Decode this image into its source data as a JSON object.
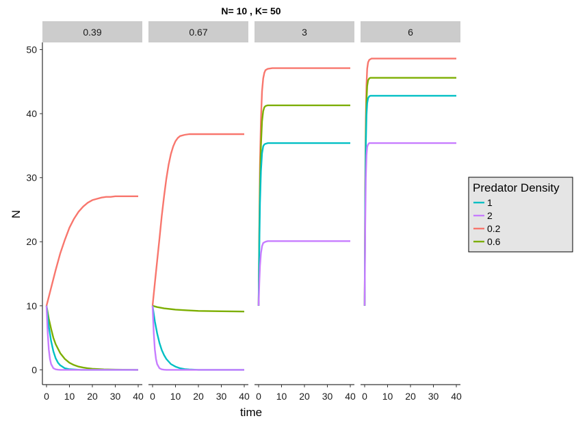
{
  "chart_data": {
    "type": "line",
    "title": "N= 10 , K= 50",
    "xlabel": "time",
    "ylabel": "N",
    "xlim": [
      0,
      40
    ],
    "ylim": [
      0,
      50
    ],
    "x_ticks": [
      0,
      10,
      20,
      30,
      40
    ],
    "y_ticks": [
      0,
      10,
      20,
      30,
      40,
      50
    ],
    "grid": false,
    "legend": {
      "title": "Predator Density",
      "placement": "right"
    },
    "colors": {
      "0.2": "#F8766D",
      "0.6": "#7CAE00",
      "1": "#00BFC4",
      "2": "#C77CFF"
    },
    "panels": [
      {
        "label": "0.39",
        "series": [
          {
            "name": "0.2",
            "x": [
              0,
              2,
              4,
              6,
              8,
              10,
              12,
              14,
              16,
              18,
              20,
              22,
              24,
              26,
              28,
              30,
              35,
              40
            ],
            "values": [
              10,
              12.8,
              15.6,
              18.2,
              20.3,
              22.2,
              23.6,
              24.7,
              25.5,
              26.1,
              26.5,
              26.7,
              26.9,
              27.0,
              27.0,
              27.1,
              27.1,
              27.1
            ]
          },
          {
            "name": "0.6",
            "x": [
              0,
              1,
              2,
              3,
              4,
              6,
              8,
              10,
              12,
              14,
              16,
              18,
              20,
              25,
              30,
              40
            ],
            "values": [
              10,
              8.0,
              6.4,
              5.0,
              4.0,
              2.6,
              1.7,
              1.1,
              0.75,
              0.5,
              0.35,
              0.25,
              0.17,
              0.08,
              0.03,
              0
            ]
          },
          {
            "name": "1",
            "x": [
              0,
              1,
              2,
              3,
              4,
              5,
              6,
              8,
              10,
              15,
              20,
              40
            ],
            "values": [
              10,
              6.8,
              4.5,
              2.9,
              1.8,
              1.1,
              0.7,
              0.25,
              0.1,
              0,
              0,
              0
            ]
          },
          {
            "name": "2",
            "x": [
              0,
              0.5,
              1,
              1.5,
              2,
              3,
              4,
              5,
              6,
              10,
              40
            ],
            "values": [
              10,
              5.8,
              3.2,
              1.7,
              0.9,
              0.25,
              0.07,
              0.02,
              0,
              0,
              0
            ]
          }
        ]
      },
      {
        "label": "0.67",
        "series": [
          {
            "name": "0.2",
            "x": [
              0,
              1,
              2,
              3,
              4,
              5,
              6,
              7,
              8,
              9,
              10,
              11,
              12,
              14,
              16,
              18,
              20,
              25,
              30,
              40
            ],
            "values": [
              10,
              13.5,
              17,
              20.5,
              24,
              27.1,
              29.8,
              32.0,
              33.7,
              34.9,
              35.7,
              36.2,
              36.5,
              36.7,
              36.8,
              36.8,
              36.8,
              36.8,
              36.8,
              36.8
            ]
          },
          {
            "name": "0.6",
            "x": [
              0,
              2,
              5,
              10,
              15,
              20,
              30,
              40
            ],
            "values": [
              10,
              9.8,
              9.6,
              9.4,
              9.3,
              9.2,
              9.15,
              9.1
            ]
          },
          {
            "name": "1",
            "x": [
              0,
              1,
              2,
              3,
              4,
              5,
              6,
              8,
              10,
              12,
              14,
              16,
              20,
              40
            ],
            "values": [
              10,
              7.6,
              5.7,
              4.2,
              3.1,
              2.3,
              1.7,
              0.9,
              0.5,
              0.25,
              0.12,
              0.06,
              0,
              0
            ]
          },
          {
            "name": "2",
            "x": [
              0,
              0.5,
              1,
              1.5,
              2,
              3,
              4,
              5,
              6,
              10,
              40
            ],
            "values": [
              10,
              5.8,
              3.2,
              1.7,
              0.9,
              0.25,
              0.07,
              0.02,
              0,
              0,
              0
            ]
          }
        ]
      },
      {
        "label": "3",
        "series": [
          {
            "name": "0.2",
            "x": [
              0,
              0.3,
              0.6,
              1,
              1.5,
              2,
              2.5,
              3,
              4,
              6,
              10,
              20,
              30,
              40
            ],
            "values": [
              10,
              22,
              32,
              39,
              43.5,
              45.5,
              46.4,
              46.8,
              47.0,
              47.1,
              47.1,
              47.1,
              47.1,
              47.1
            ]
          },
          {
            "name": "0.6",
            "x": [
              0,
              0.3,
              0.6,
              1,
              1.5,
              2,
              2.5,
              3,
              4,
              6,
              10,
              20,
              30,
              40
            ],
            "values": [
              10,
              21,
              29,
              35,
              38.8,
              40.4,
              41.0,
              41.2,
              41.3,
              41.3,
              41.3,
              41.3,
              41.3,
              41.3
            ]
          },
          {
            "name": "1",
            "x": [
              0,
              0.3,
              0.6,
              1,
              1.5,
              2,
              2.5,
              3,
              4,
              6,
              10,
              20,
              30,
              40
            ],
            "values": [
              10,
              19,
              26,
              31,
              33.8,
              34.9,
              35.2,
              35.3,
              35.4,
              35.4,
              35.4,
              35.4,
              35.4,
              35.4
            ]
          },
          {
            "name": "2",
            "x": [
              0,
              0.3,
              0.6,
              1,
              1.5,
              2,
              3,
              4,
              6,
              10,
              20,
              30,
              40
            ],
            "values": [
              10,
              13.5,
              16.2,
              18.2,
              19.3,
              19.8,
              20.0,
              20.1,
              20.1,
              20.1,
              20.1,
              20.1,
              20.1
            ]
          }
        ]
      },
      {
        "label": "6",
        "series": [
          {
            "name": "0.2",
            "x": [
              0,
              0.25,
              0.5,
              0.8,
              1.1,
              1.5,
              2,
              2.5,
              3,
              5,
              10,
              20,
              40
            ],
            "values": [
              10,
              28,
              39,
              44.5,
              47,
              48,
              48.4,
              48.5,
              48.6,
              48.6,
              48.6,
              48.6,
              48.6
            ]
          },
          {
            "name": "0.6",
            "x": [
              0,
              0.25,
              0.5,
              0.8,
              1.1,
              1.5,
              2,
              2.5,
              3,
              5,
              10,
              20,
              40
            ],
            "values": [
              10,
              27,
              37,
              42,
              44.3,
              45.2,
              45.5,
              45.6,
              45.6,
              45.6,
              45.6,
              45.6,
              45.6
            ]
          },
          {
            "name": "1",
            "x": [
              0,
              0.25,
              0.5,
              0.8,
              1.1,
              1.5,
              2,
              2.5,
              3,
              5,
              10,
              20,
              40
            ],
            "values": [
              10,
              26,
              35,
              39.8,
              41.6,
              42.4,
              42.7,
              42.8,
              42.8,
              42.8,
              42.8,
              42.8,
              42.8
            ]
          },
          {
            "name": "2",
            "x": [
              0,
              0.25,
              0.5,
              0.8,
              1.1,
              1.5,
              2,
              2.5,
              3,
              5,
              10,
              20,
              40
            ],
            "values": [
              10,
              22,
              30,
              33.5,
              34.8,
              35.2,
              35.4,
              35.4,
              35.4,
              35.4,
              35.4,
              35.4,
              35.4
            ]
          }
        ]
      }
    ]
  }
}
